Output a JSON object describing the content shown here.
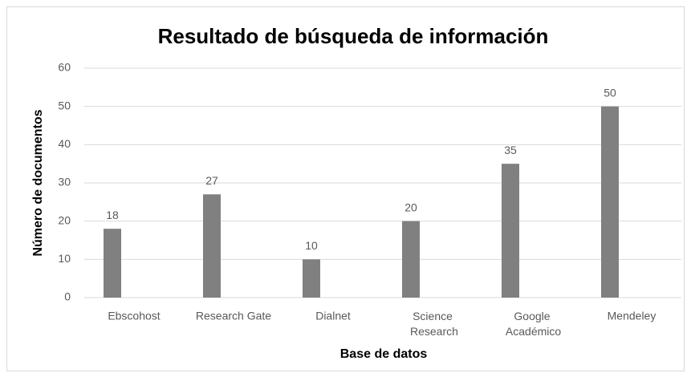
{
  "chart_data": {
    "type": "bar",
    "title": "Resultado de búsqueda de información",
    "xlabel": "Base de datos",
    "ylabel": "Número de documentos",
    "categories": [
      "Ebscohost",
      "Research Gate",
      "Dialnet",
      "Science Research",
      "Google Académico",
      "Mendeley"
    ],
    "values": [
      18,
      27,
      10,
      20,
      35,
      50
    ],
    "color": "#808080",
    "ylim": [
      0,
      60
    ],
    "yticks": [
      0,
      10,
      20,
      30,
      40,
      50,
      60
    ],
    "grid": true
  }
}
